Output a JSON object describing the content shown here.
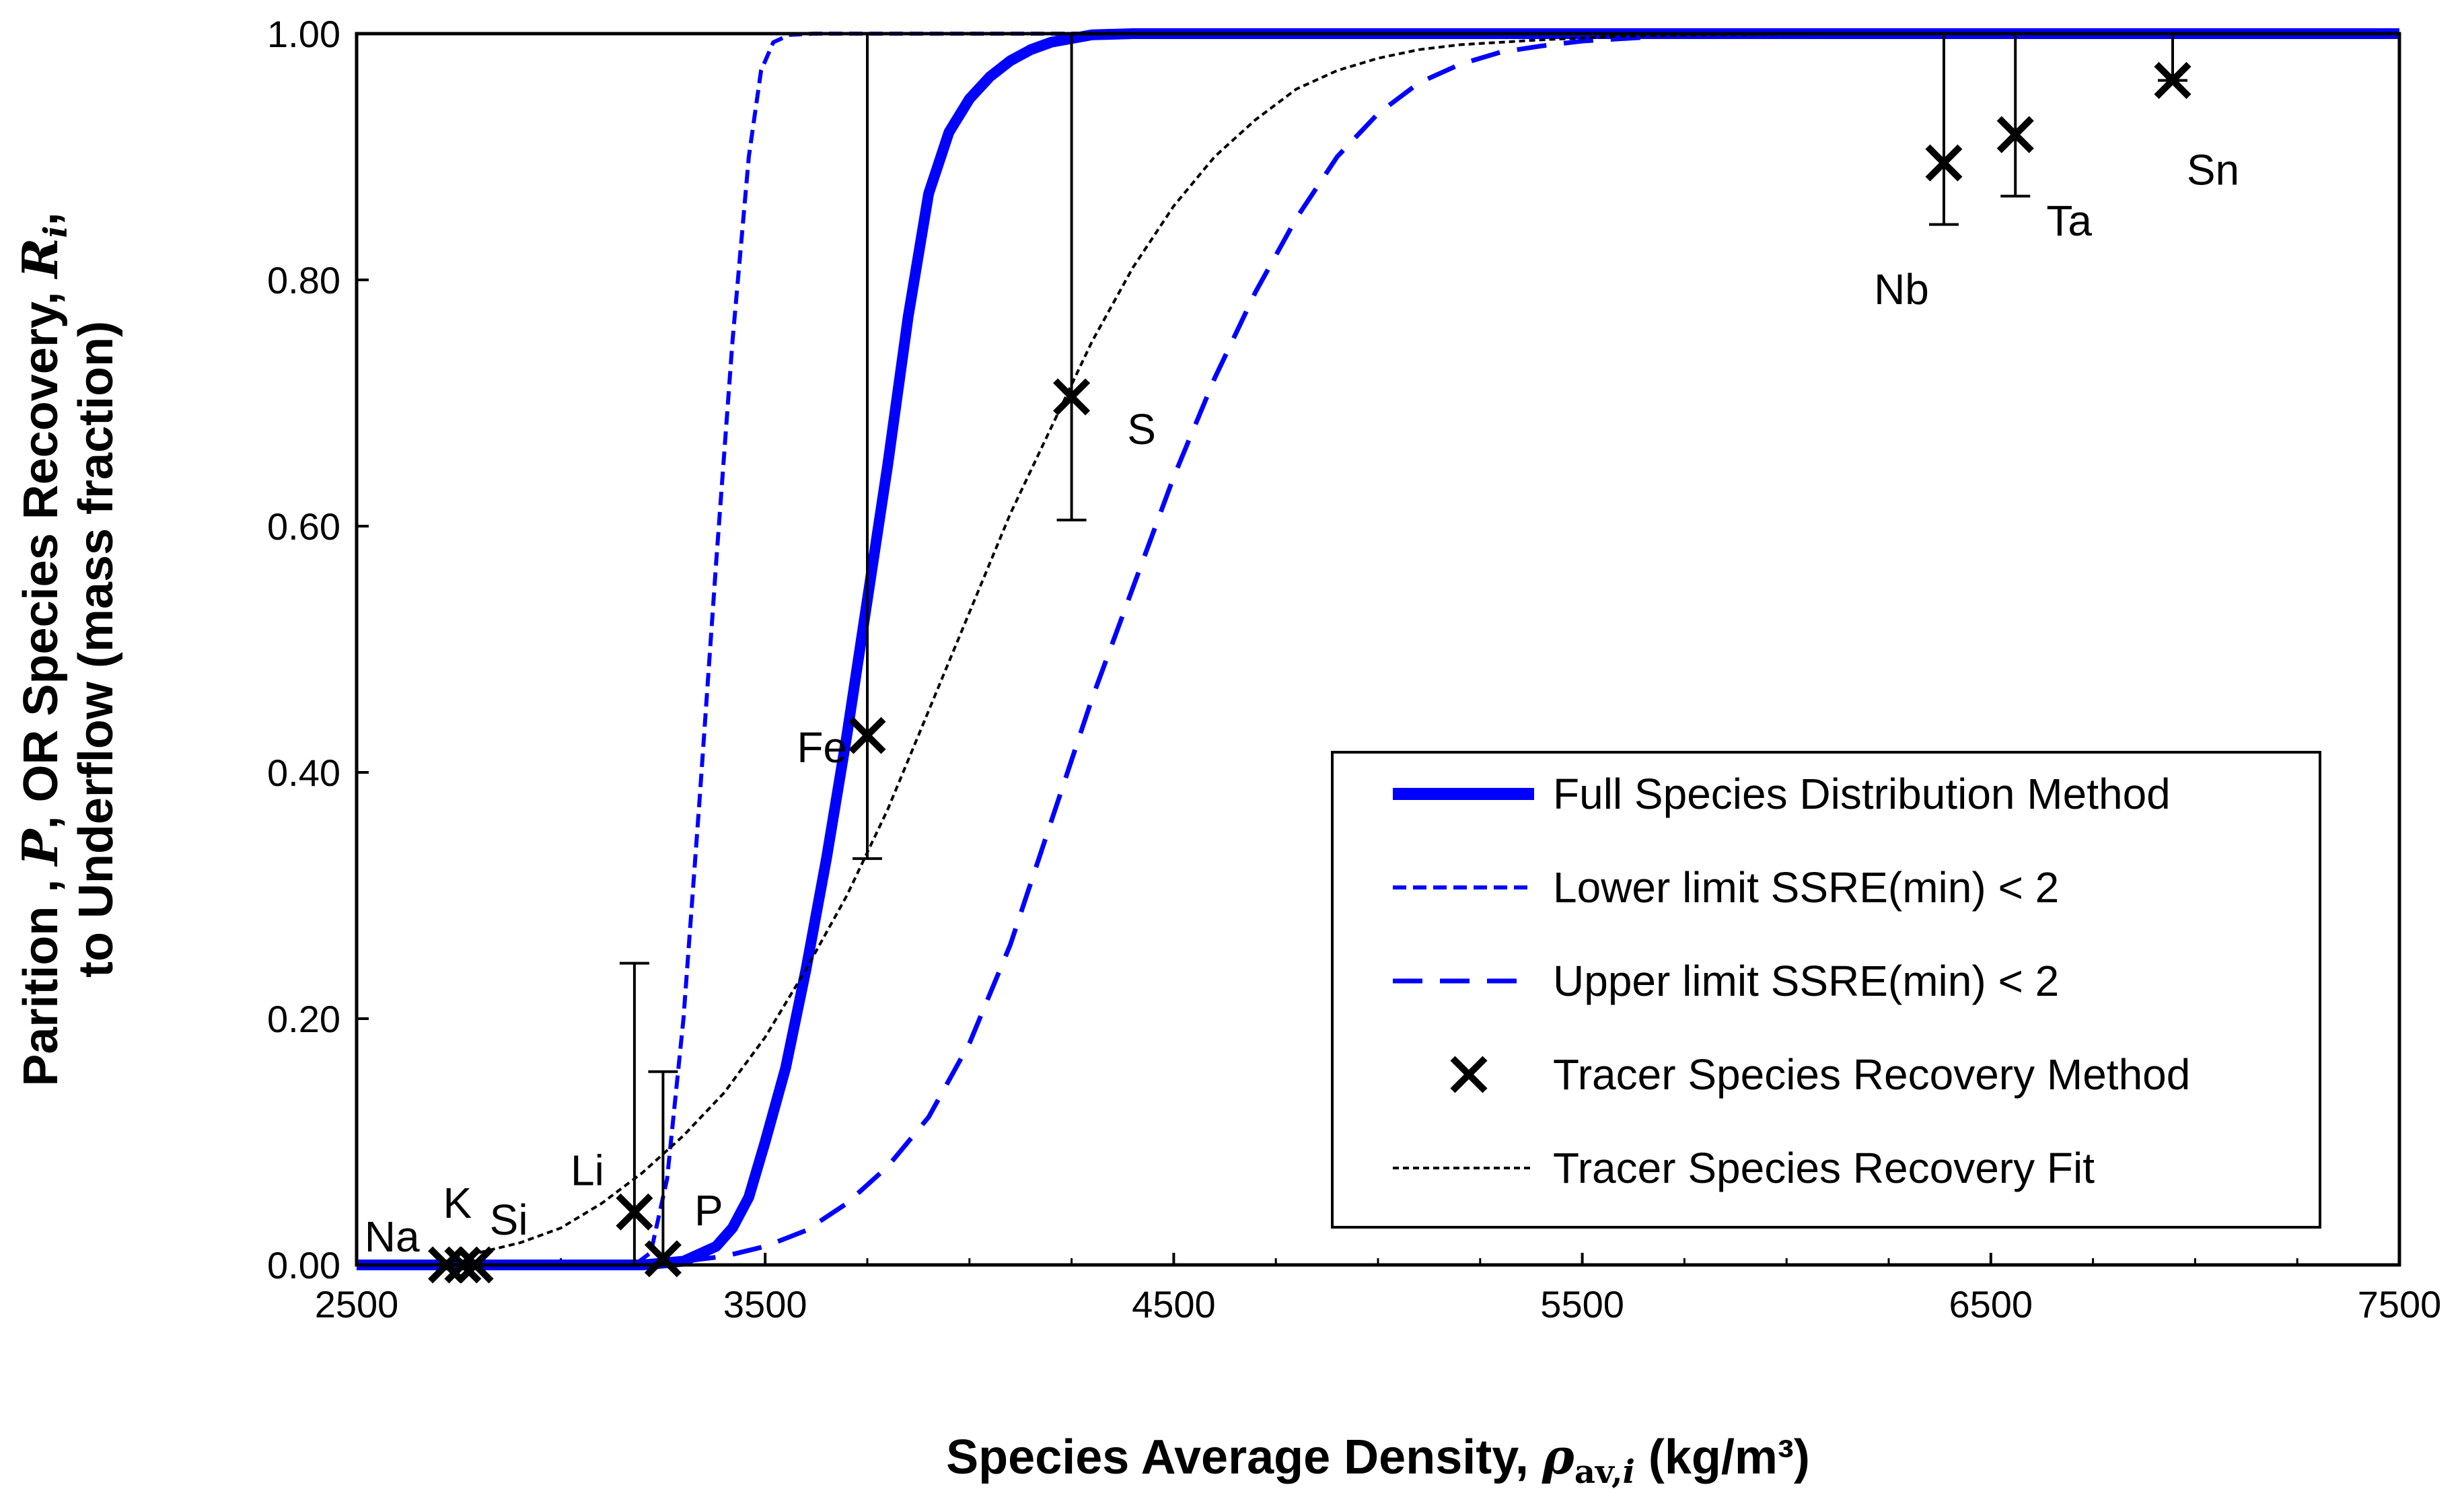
{
  "chart_data": {
    "type": "line",
    "xlabel_parts": [
      "Species Average Density, ",
      "ρ",
      "av,",
      "i",
      " (kg/m³)"
    ],
    "ylabel_line1_parts": [
      "Parition , ",
      "P",
      ", OR Species Recovery, ",
      "R",
      "i",
      ","
    ],
    "ylabel_line2": "to Underflow (mass fraction)",
    "xlim": [
      2500,
      7500
    ],
    "ylim": [
      0,
      1
    ],
    "xticks": [
      2500,
      3500,
      4500,
      5500,
      6500,
      7500
    ],
    "xtick_labels": [
      "2500",
      "3500",
      "4500",
      "5500",
      "6500",
      "7500"
    ],
    "yticks": [
      0,
      0.2,
      0.4,
      0.6,
      0.8,
      1.0
    ],
    "ytick_labels": [
      "0.00",
      "0.20",
      "0.40",
      "0.60",
      "0.80",
      "1.00"
    ],
    "series": [
      {
        "name": "Full Species Distribution Method",
        "style": "solid-thick",
        "color": "#0000ff",
        "x": [
          2500,
          3200,
          3300,
          3380,
          3420,
          3460,
          3500,
          3550,
          3600,
          3650,
          3700,
          3750,
          3800,
          3850,
          3900,
          3950,
          4000,
          4050,
          4100,
          4150,
          4200,
          4300,
          4400,
          7500
        ],
        "y": [
          0,
          0,
          0.003,
          0.015,
          0.03,
          0.055,
          0.1,
          0.16,
          0.24,
          0.33,
          0.43,
          0.54,
          0.65,
          0.77,
          0.87,
          0.92,
          0.947,
          0.965,
          0.978,
          0.987,
          0.993,
          0.999,
          1.0,
          1.0
        ]
      },
      {
        "name": "Lower limit SSRE(min) < 2",
        "style": "short-dash",
        "color": "#0000ff",
        "x": [
          2500,
          3180,
          3220,
          3260,
          3300,
          3340,
          3380,
          3420,
          3460,
          3490,
          3520,
          3560,
          3620,
          7500
        ],
        "y": [
          0,
          0,
          0.01,
          0.07,
          0.2,
          0.38,
          0.57,
          0.75,
          0.9,
          0.97,
          0.993,
          0.999,
          1.0,
          1.0
        ]
      },
      {
        "name": "Upper limit SSRE(min) < 2",
        "style": "long-dash",
        "color": "#0000ff",
        "x": [
          2500,
          3200,
          3300,
          3400,
          3500,
          3600,
          3700,
          3800,
          3900,
          4000,
          4100,
          4200,
          4300,
          4400,
          4500,
          4600,
          4700,
          4800,
          4900,
          5000,
          5100,
          5200,
          5300,
          5400,
          5500,
          5700,
          6000,
          7500
        ],
        "y": [
          0,
          0,
          0.003,
          0.007,
          0.015,
          0.028,
          0.05,
          0.08,
          0.12,
          0.18,
          0.26,
          0.36,
          0.46,
          0.55,
          0.64,
          0.72,
          0.79,
          0.85,
          0.9,
          0.935,
          0.96,
          0.975,
          0.985,
          0.99,
          0.994,
          0.998,
          1.0,
          1.0
        ]
      },
      {
        "name": "Tracer Species Recovery Fit",
        "style": "fine-dash",
        "color": "#000000",
        "x": [
          2800,
          2900,
          3000,
          3100,
          3200,
          3300,
          3400,
          3500,
          3600,
          3700,
          3800,
          3900,
          4000,
          4100,
          4200,
          4300,
          4400,
          4500,
          4600,
          4700,
          4800,
          4900,
          5000,
          5100,
          5200,
          5400,
          5600,
          5800,
          6200,
          7500
        ],
        "y": [
          0.01,
          0.018,
          0.03,
          0.05,
          0.075,
          0.105,
          0.14,
          0.185,
          0.24,
          0.3,
          0.37,
          0.45,
          0.53,
          0.61,
          0.68,
          0.75,
          0.81,
          0.86,
          0.9,
          0.93,
          0.955,
          0.97,
          0.98,
          0.987,
          0.991,
          0.995,
          0.998,
          0.999,
          1.0,
          1.0
        ]
      }
    ],
    "points": {
      "name": "Tracer Species Recovery Method",
      "items": [
        {
          "label": "Na",
          "x": 2720,
          "y": 0.0
        },
        {
          "label": "K",
          "x": 2760,
          "y": 0.0
        },
        {
          "label": "Si",
          "x": 2790,
          "y": 0.0
        },
        {
          "label": "Li",
          "x": 3180,
          "y": 0.043,
          "err_low": 0.0,
          "err_high": 0.245
        },
        {
          "label": "P",
          "x": 3250,
          "y": 0.005,
          "err_low": 0.0,
          "err_high": 0.157
        },
        {
          "label": "Fe",
          "x": 3750,
          "y": 0.43,
          "err_low": 0.33,
          "err_high": 1.0
        },
        {
          "label": "S",
          "x": 4250,
          "y": 0.705,
          "err_low": 0.605,
          "err_high": 1.0
        },
        {
          "label": "Nb",
          "x": 6385,
          "y": 0.895,
          "err_low": 0.845,
          "err_high": 1.0
        },
        {
          "label": "Ta",
          "x": 6560,
          "y": 0.918,
          "err_low": 0.868,
          "err_high": 1.0
        },
        {
          "label": "Sn",
          "x": 6945,
          "y": 0.962,
          "err_low": 0.962,
          "err_high": 1.0
        }
      ]
    },
    "legend_position": "bottom-right",
    "legend": [
      "Full Species Distribution Method",
      "Lower limit SSRE(min) < 2",
      "Upper limit SSRE(min) < 2",
      "Tracer Species Recovery Method",
      "Tracer Species Recovery Fit"
    ]
  }
}
